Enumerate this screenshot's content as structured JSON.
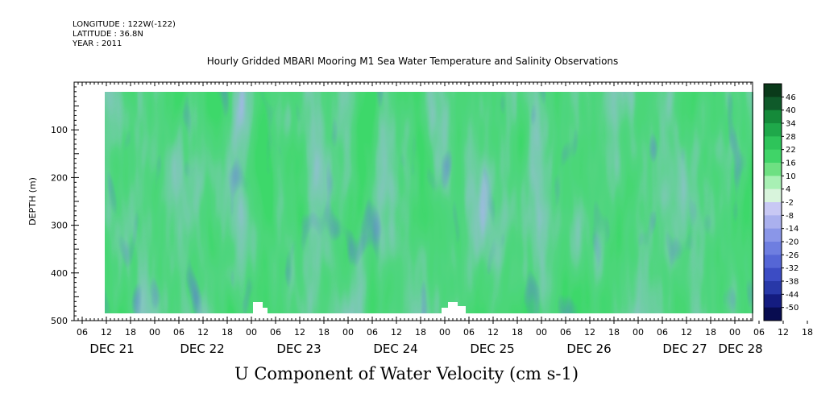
{
  "header": {
    "longitude": "LONGITUDE : 122W(-122)",
    "latitude": "LATITUDE : 36.8N",
    "year": "YEAR : 2011"
  },
  "chart_data": {
    "type": "heatmap",
    "title": "Hourly Gridded MBARI Mooring M1 Sea Water Temperature and Salinity Observations",
    "xlabel": "U Component of Water Velocity (cm s-1)",
    "ylabel": "DEPTH (m)",
    "ylim": [
      500,
      0
    ],
    "y_ticks": [
      100,
      200,
      300,
      400,
      500
    ],
    "x_hour_ticks": [
      "06",
      "12",
      "18",
      "00",
      "06",
      "12",
      "18",
      "00",
      "06",
      "12",
      "18",
      "00",
      "06",
      "12",
      "18",
      "00",
      "06",
      "12",
      "18",
      "00",
      "06",
      "12",
      "18",
      "00",
      "06",
      "12",
      "18",
      "00",
      "06",
      "12",
      "18",
      "00"
    ],
    "x_day_labels": [
      "DEC 21",
      "DEC 22",
      "DEC 23",
      "DEC 24",
      "DEC 25",
      "DEC 26",
      "DEC 27",
      "DEC 28"
    ],
    "data_depth_range": [
      20,
      485
    ],
    "colorbar": {
      "labels": [
        "46",
        "40",
        "34",
        "28",
        "22",
        "16",
        "10",
        "4",
        "-2",
        "-8",
        "-14",
        "-20",
        "-26",
        "-32",
        "-38",
        "-44",
        "-50"
      ],
      "colors": [
        "#0a3a1a",
        "#0f5a2a",
        "#158a3a",
        "#1fa84a",
        "#2ec45a",
        "#40d468",
        "#6ee082",
        "#a8f0b4",
        "#d8f4dc",
        "#c8c8f4",
        "#aab0ee",
        "#8a96e8",
        "#6e7ee0",
        "#5566d6",
        "#3c4cc4",
        "#2838a8",
        "#141c80",
        "#080c50"
      ]
    }
  }
}
